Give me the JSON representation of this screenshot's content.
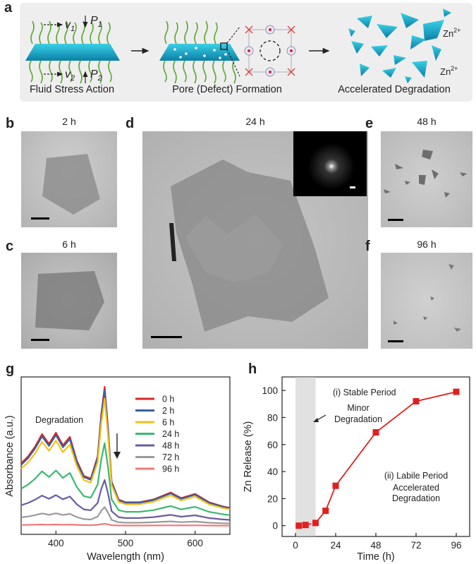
{
  "panel_a": {
    "letter": "a",
    "steps": [
      "Fluid Stress Action",
      "Pore (Defect) Formation",
      "Accelerated Degradation"
    ],
    "flow_labels": {
      "v1": "v",
      "v1_sub": "1",
      "v2": "v",
      "v2_sub": "2",
      "p1": "P",
      "p1_sub": "1",
      "p2": "P",
      "p2_sub": "2"
    },
    "ion_labels": [
      "Zn",
      "Zn"
    ],
    "ion_charge": "2+"
  },
  "tem_panels": [
    {
      "letter": "b",
      "time": "2 h"
    },
    {
      "letter": "c",
      "time": "6 h"
    },
    {
      "letter": "d",
      "time": "24 h"
    },
    {
      "letter": "e",
      "time": "48 h"
    },
    {
      "letter": "f",
      "time": "96 h"
    }
  ],
  "panel_g": {
    "letter": "g",
    "annotation": "Degradation"
  },
  "panel_h": {
    "letter": "h",
    "annotations": {
      "stable": "(i) Stable Period",
      "minor1": "Minor",
      "minor2": "Degradation",
      "labile": "(ii) Labile Period",
      "acc1": "Accelerated",
      "acc2": "Degradation"
    }
  },
  "chart_data": [
    {
      "type": "line",
      "title": "",
      "xlabel": "Wavelength (nm)",
      "ylabel": "Absorbance (a.u.)",
      "xlim": [
        350,
        650
      ],
      "x_ticks": [
        400,
        500,
        600
      ],
      "y_ticks_shown": false,
      "legend_position": "top-right",
      "series": [
        {
          "name": "0 h",
          "color": "#d62728",
          "scale": 1.0
        },
        {
          "name": "2 h",
          "color": "#3a5f9f",
          "scale": 0.975
        },
        {
          "name": "6 h",
          "color": "#f2c218",
          "scale": 0.915
        },
        {
          "name": "24 h",
          "color": "#3cb870",
          "scale": 0.595
        },
        {
          "name": "48 h",
          "color": "#6a5ba3",
          "scale": 0.33
        },
        {
          "name": "72 h",
          "color": "#9a9a9a",
          "scale": 0.135
        },
        {
          "name": "96 h",
          "color": "#f07a7a",
          "scale": 0.015
        }
      ],
      "shape_0h": {
        "x": [
          350,
          360,
          370,
          380,
          390,
          400,
          410,
          420,
          430,
          440,
          450,
          460,
          465,
          470,
          475,
          480,
          490,
          500,
          520,
          540,
          560,
          565,
          580,
          600,
          620,
          640,
          650
        ],
        "y": [
          0.45,
          0.5,
          0.57,
          0.66,
          0.59,
          0.67,
          0.58,
          0.64,
          0.47,
          0.36,
          0.34,
          0.5,
          0.8,
          1.0,
          0.7,
          0.32,
          0.19,
          0.17,
          0.17,
          0.19,
          0.23,
          0.24,
          0.2,
          0.23,
          0.17,
          0.14,
          0.13
        ]
      }
    },
    {
      "type": "line",
      "title": "",
      "xlabel": "Time (h)",
      "ylabel": "Zn Release (%)",
      "xlim": [
        -8,
        104
      ],
      "ylim": [
        -8,
        110
      ],
      "x_ticks": [
        0,
        24,
        48,
        72,
        96
      ],
      "y_ticks": [
        0,
        20,
        40,
        60,
        80,
        100
      ],
      "shaded_region_x": [
        0,
        12
      ],
      "series": [
        {
          "name": "",
          "color": "#e02020",
          "x": [
            2,
            6,
            12,
            18,
            24,
            48,
            72,
            96
          ],
          "y": [
            0,
            0.5,
            2,
            11,
            29.5,
            69,
            92,
            99
          ]
        }
      ]
    }
  ]
}
